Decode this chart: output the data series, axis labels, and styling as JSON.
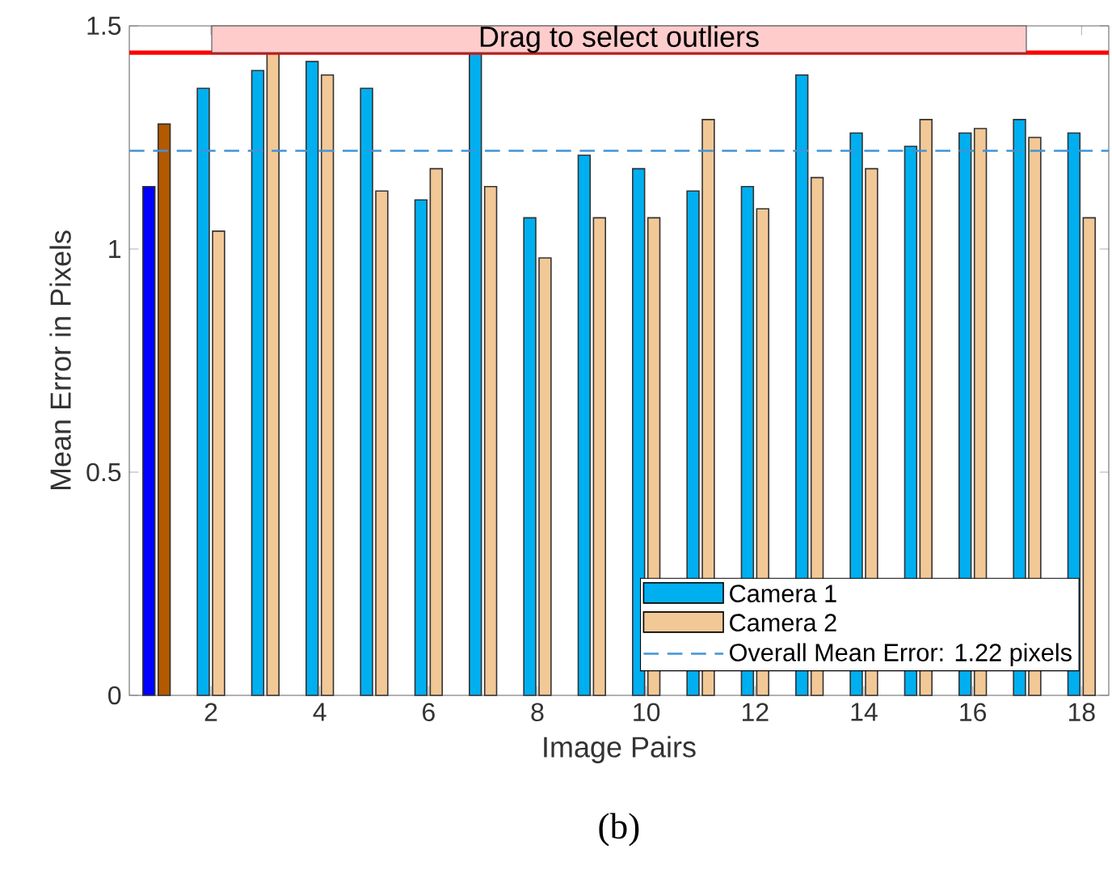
{
  "chart_data": {
    "type": "bar",
    "xlabel": "Image Pairs",
    "ylabel": "Mean Error in Pixels",
    "x": [
      1,
      2,
      3,
      4,
      5,
      6,
      7,
      8,
      9,
      10,
      11,
      12,
      13,
      14,
      15,
      16,
      17,
      18
    ],
    "series": [
      {
        "name": "Camera 1",
        "color": "#00aff0",
        "colors": [
          "#0000ff",
          "#00aff0",
          "#00aff0",
          "#00aff0",
          "#00aff0",
          "#00aff0",
          "#00aff0",
          "#00aff0",
          "#00aff0",
          "#00aff0",
          "#00aff0",
          "#00aff0",
          "#00aff0",
          "#00aff0",
          "#00aff0",
          "#00aff0",
          "#00aff0",
          "#00aff0"
        ],
        "values": [
          1.14,
          1.36,
          1.4,
          1.42,
          1.36,
          1.11,
          1.44,
          1.07,
          1.21,
          1.18,
          1.13,
          1.14,
          1.39,
          1.26,
          1.23,
          1.26,
          1.29,
          1.26
        ]
      },
      {
        "name": "Camera 2",
        "color": "#f2c896",
        "colors": [
          "#b35900",
          "#f2c896",
          "#f2c896",
          "#f2c896",
          "#f2c896",
          "#f2c896",
          "#f2c896",
          "#f2c896",
          "#f2c896",
          "#f2c896",
          "#f2c896",
          "#f2c896",
          "#f2c896",
          "#f2c896",
          "#f2c896",
          "#f2c896",
          "#f2c896",
          "#f2c896"
        ],
        "values": [
          1.28,
          1.04,
          1.44,
          1.39,
          1.13,
          1.18,
          1.14,
          0.98,
          1.07,
          1.07,
          1.29,
          1.09,
          1.16,
          1.18,
          1.29,
          1.27,
          1.25,
          1.07
        ]
      }
    ],
    "xlim": [
      0.5,
      18.5
    ],
    "xticks": [
      2,
      4,
      6,
      8,
      10,
      12,
      14,
      16,
      18
    ],
    "ylim": [
      0,
      1.5
    ],
    "yticks": [
      0,
      0.5,
      1,
      1.5
    ],
    "ref_lines": [
      {
        "axis": "y",
        "value": 1.22,
        "label": "Overall Mean Error: 1.22 pixels",
        "color": "#3f94d6",
        "line_style": "dashed"
      },
      {
        "axis": "y",
        "value": 1.44,
        "color": "#ff0000",
        "line_style": "solid"
      }
    ],
    "bands": [
      {
        "axis": "y",
        "from": 1.44,
        "to": 1.5,
        "label": "Drag to select outliers",
        "color": "#ffcccc"
      }
    ],
    "annotations": [
      "(b)"
    ],
    "legend": "bottom right",
    "grid": false
  }
}
